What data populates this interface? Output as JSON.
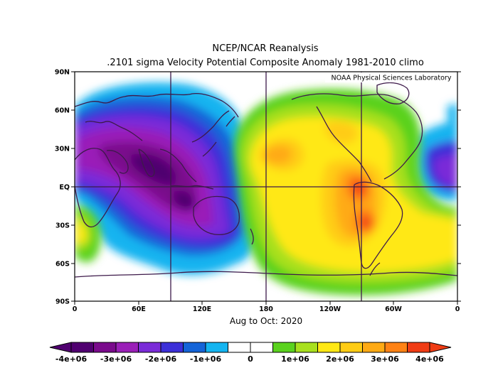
{
  "title": {
    "line1": "NCEP/NCAR Reanalysis",
    "line2": ".2101 sigma Velocity Potential  Composite Anomaly 1981-2010 climo"
  },
  "credit": "NOAA Physical Sciences Laboratory",
  "period": "Aug to Oct: 2020",
  "axes": {
    "lat_ticks": [
      "90N",
      "60N",
      "30N",
      "EQ",
      "30S",
      "60S",
      "90S"
    ],
    "lon_ticks": [
      "0",
      "60E",
      "120E",
      "180",
      "120W",
      "60W",
      "0"
    ]
  },
  "colorbar": {
    "labels": [
      "-4e+06",
      "-3e+06",
      "-2e+06",
      "-1e+06",
      "0",
      "1e+06",
      "2e+06",
      "3e+06",
      "4e+06"
    ],
    "colors": [
      "#500070",
      "#7a0a8c",
      "#9a1fb8",
      "#7a2bd8",
      "#3c2fd8",
      "#1464d8",
      "#14b4f0",
      "#ffffff",
      "#ffffff",
      "#5ad21e",
      "#a8e01e",
      "#ffe814",
      "#ffcc14",
      "#ffaa14",
      "#ff8214",
      "#f03c14"
    ]
  },
  "colors": {
    "coast": "#3d1a4a",
    "grid": "#3d1a4a",
    "frame": "#000000"
  }
}
